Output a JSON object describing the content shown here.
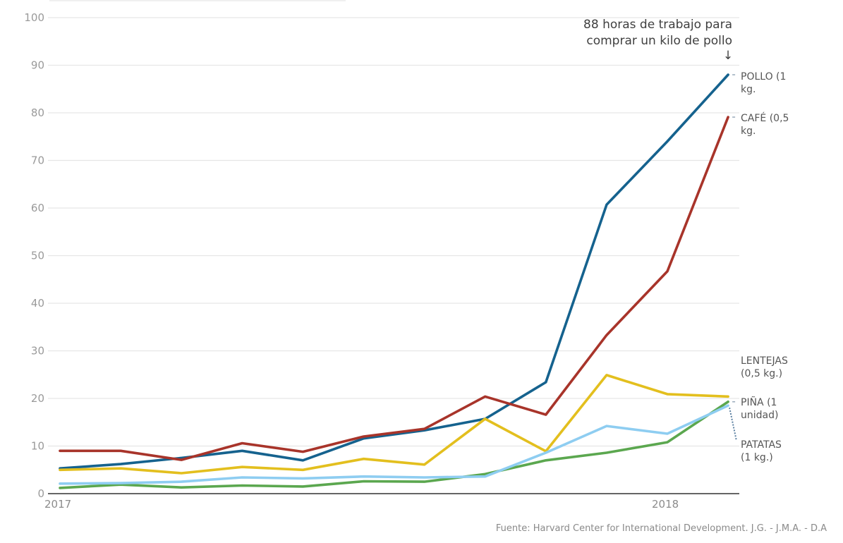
{
  "chart_data": {
    "type": "line",
    "title": "",
    "annotation": [
      "88 horas de trabajo para",
      "comprar un kilo de pollo"
    ],
    "annotation_arrow": "↓",
    "xlabel": "",
    "ylabel": "",
    "x_tick_labels": [
      {
        "index": 0,
        "label": "2017"
      },
      {
        "index": 10,
        "label": "2018"
      }
    ],
    "x": [
      0,
      1,
      2,
      3,
      4,
      5,
      6,
      7,
      8,
      9,
      10,
      11
    ],
    "ylim": [
      0,
      100
    ],
    "y_ticks": [
      0,
      10,
      20,
      30,
      40,
      50,
      60,
      70,
      80,
      90,
      100
    ],
    "grid": true,
    "series": [
      {
        "key": "pollo",
        "name": "POLLO (1 kg.)",
        "label_lines": [
          "POLLO (1",
          "kg."
        ],
        "color": "#15628e",
        "values": [
          5.3,
          6.2,
          7.5,
          9.0,
          7.0,
          11.6,
          13.3,
          15.7,
          23.4,
          60.7,
          74.0,
          88.0
        ]
      },
      {
        "key": "cafe",
        "name": "CAFÉ (0,5 kg.)",
        "label_lines": [
          "CAFÉ (0,5",
          "kg."
        ],
        "color": "#a8342a",
        "values": [
          9.0,
          9.0,
          7.1,
          10.6,
          8.8,
          12.0,
          13.6,
          20.4,
          16.6,
          33.3,
          46.7,
          79.1
        ]
      },
      {
        "key": "lentejas",
        "name": "LENTEJAS (0,5 kg.)",
        "label_lines": [
          "LENTEJAS",
          "(0,5 kg.)"
        ],
        "color": "#e3bf1e",
        "values": [
          5.0,
          5.3,
          4.3,
          5.6,
          5.0,
          7.3,
          6.1,
          15.7,
          8.9,
          24.9,
          20.9,
          20.4
        ]
      },
      {
        "key": "pina",
        "name": "PIÑA (1 unidad)",
        "label_lines": [
          "PIÑA (1",
          "unidad)"
        ],
        "color": "#5ba74f",
        "values": [
          1.2,
          1.9,
          1.3,
          1.7,
          1.5,
          2.6,
          2.5,
          4.1,
          7.0,
          8.6,
          10.8,
          19.3
        ]
      },
      {
        "key": "patatas",
        "name": "PATATAS (1 kg.)",
        "label_lines": [
          "PATATAS",
          "(1 kg.)"
        ],
        "color": "#8ecdf1",
        "values": [
          2.1,
          2.2,
          2.5,
          3.4,
          3.2,
          3.6,
          3.4,
          3.6,
          8.6,
          14.2,
          12.6,
          18.5
        ]
      }
    ],
    "source": "Fuente: Harvard Center for International Development.   J.G. - J.M.A. - D.A"
  }
}
